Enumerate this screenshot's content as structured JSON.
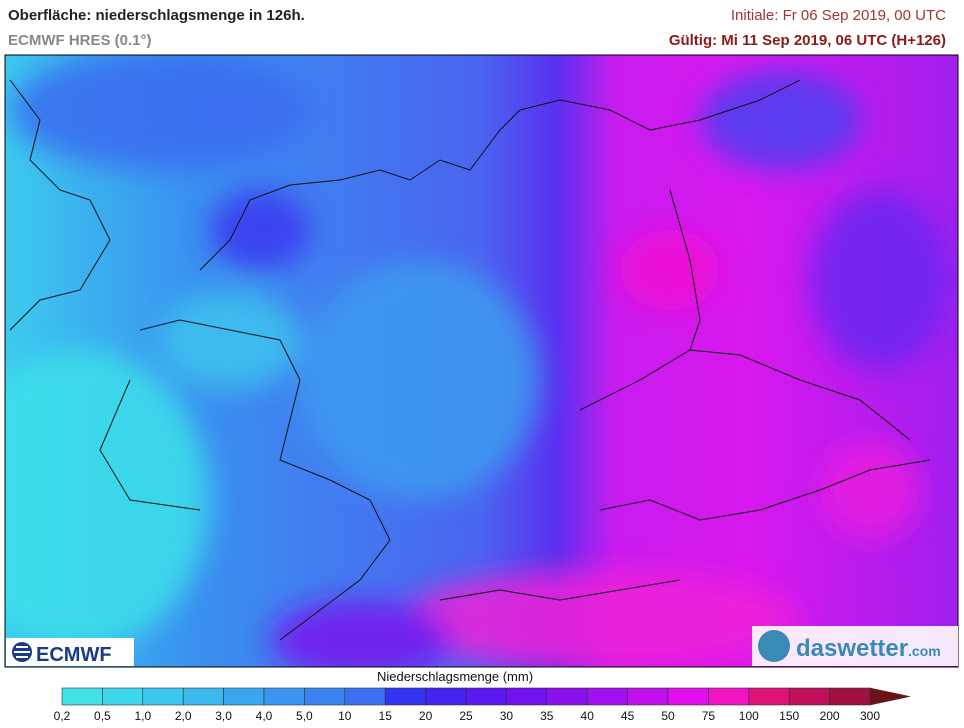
{
  "header": {
    "title": "Oberfläche: niederschlagsmenge in 126h.",
    "subtitle": "ECMWF HRES (0.1°)",
    "initial": "Initiale: Fr 06 Sep 2019, 00 UTC",
    "valid": "Gültig: Mi 11 Sep 2019, 06 UTC (H+126)"
  },
  "logos": {
    "left": "ECMWF",
    "right": "daswetter",
    "right_suffix": ".com"
  },
  "legend": {
    "label": "Niederschlagsmenge (mm)",
    "ticks": [
      "0,2",
      "0,5",
      "1,0",
      "2,0",
      "3,0",
      "4,0",
      "5,0",
      "10",
      "15",
      "20",
      "25",
      "30",
      "35",
      "40",
      "45",
      "50",
      "75",
      "100",
      "150",
      "200",
      "300"
    ],
    "colors": [
      "#40e2e8",
      "#3ed6ec",
      "#3cc8ee",
      "#3ab8ef",
      "#3aa8f0",
      "#3a96f0",
      "#3a84f0",
      "#3a70f0",
      "#3434f0",
      "#4422f0",
      "#5c18ef",
      "#7212ee",
      "#8a10ee",
      "#a210ee",
      "#c010ee",
      "#e010ee",
      "#f014c4",
      "#e0127a",
      "#c0105a",
      "#a01040"
    ],
    "extend_color": "#6e1018"
  }
}
